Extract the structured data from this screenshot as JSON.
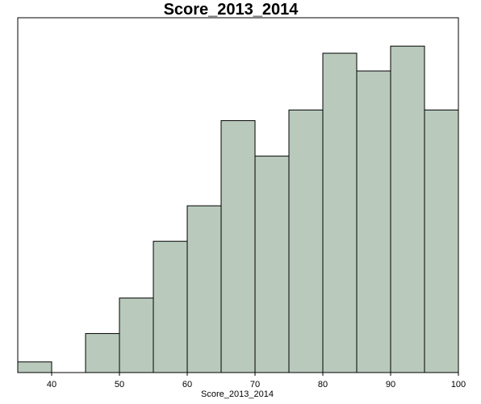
{
  "chart_data": {
    "type": "bar",
    "title": "Score_2013_2014",
    "xlabel": "Score_2013_2014",
    "ylabel": "",
    "xlim": [
      35,
      100
    ],
    "ylim": [
      0,
      100
    ],
    "bin_edges": [
      35,
      40,
      45,
      50,
      55,
      60,
      65,
      70,
      75,
      80,
      85,
      90,
      95,
      100
    ],
    "values": [
      3,
      0,
      11,
      21,
      37,
      47,
      71,
      61,
      74,
      90,
      85,
      92,
      74
    ],
    "x_ticks": [
      40,
      50,
      60,
      70,
      80,
      90,
      100
    ],
    "grid": false,
    "bar_color": "#b9cabd",
    "bar_edge_color": "#000000"
  }
}
